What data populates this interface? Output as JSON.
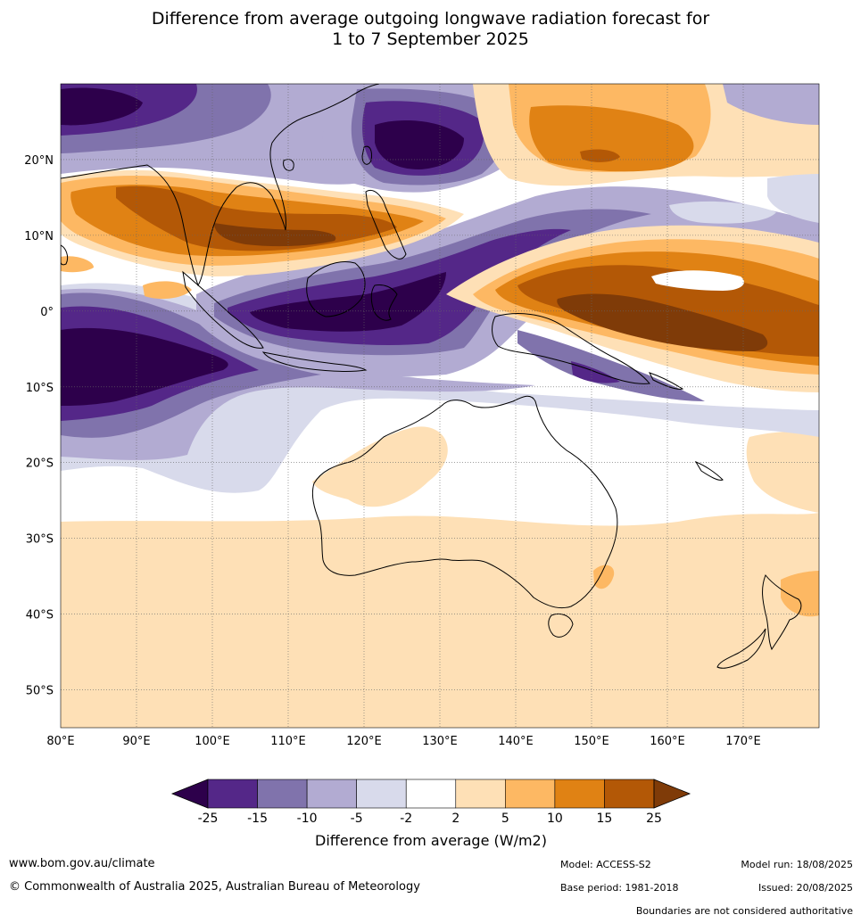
{
  "title_line1": "Difference from average outgoing longwave radiation forecast for",
  "title_line2": "1 to 7 September 2025",
  "lat_labels": [
    "20°N",
    "10°N",
    "0°",
    "10°S",
    "20°S",
    "30°S",
    "40°S",
    "50°S"
  ],
  "lon_labels": [
    "80°E",
    "90°E",
    "100°E",
    "110°E",
    "120°E",
    "130°E",
    "140°E",
    "150°E",
    "160°E",
    "170°E"
  ],
  "colorbar": {
    "ticks": [
      "-25",
      "-15",
      "-10",
      "-5",
      "-2",
      "2",
      "5",
      "10",
      "15",
      "25"
    ],
    "colors": [
      "#2d004b",
      "#542788",
      "#8073ac",
      "#b2abd2",
      "#d8daeb",
      "#ffffff",
      "#fee0b6",
      "#fdb863",
      "#e08214",
      "#b35806",
      "#7f3b08"
    ],
    "label": "Difference from average (W/m2)"
  },
  "footer": {
    "website": "www.bom.gov.au/climate",
    "copyright": "© Commonwealth of Australia 2025, Australian Bureau of Meteorology",
    "model": "Model: ACCESS-S2",
    "base_period": "Base period: 1981-2018",
    "model_run": "Model run: 18/08/2025",
    "issued": "Issued: 20/08/2025",
    "disclaimer": "Boundaries are not considered authoritative"
  }
}
